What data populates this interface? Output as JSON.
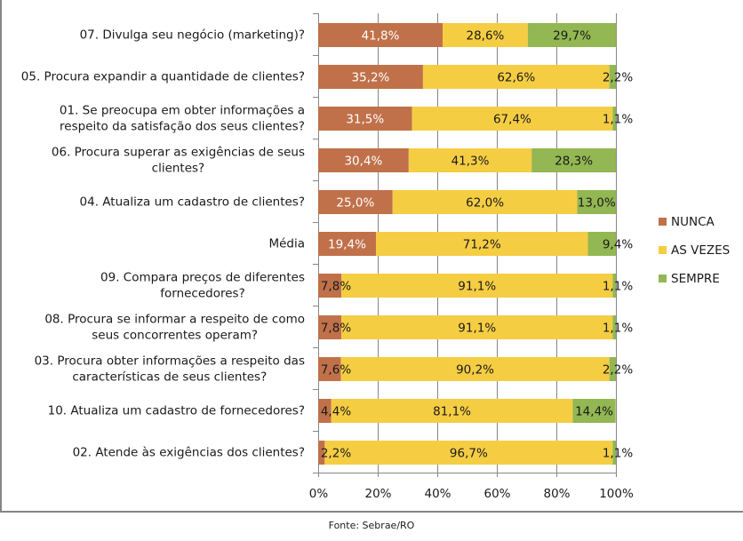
{
  "chart_data": {
    "type": "bar",
    "orientation": "horizontal",
    "stacked": "percent",
    "title": "",
    "xlabel": "",
    "ylabel": "",
    "xlim": [
      0,
      100
    ],
    "x_ticks": [
      "0%",
      "20%",
      "40%",
      "60%",
      "80%",
      "100%"
    ],
    "grid": "vertical",
    "legend_position": "right",
    "categories": [
      [
        "07. Divulga seu negócio (marketing)?"
      ],
      [
        "05. Procura expandir a quantidade de clientes?"
      ],
      [
        "01. Se preocupa em obter informações a",
        "respeito da satisfação dos seus clientes?"
      ],
      [
        "06. Procura superar as exigências de seus",
        "clientes?"
      ],
      [
        "04. Atualiza um cadastro de clientes?"
      ],
      [
        "Média"
      ],
      [
        "09. Compara preços de diferentes",
        "fornecedores?"
      ],
      [
        "08. Procura se informar a respeito de como",
        "seus concorrentes operam?"
      ],
      [
        "03. Procura obter informações a respeito das",
        "características de seus clientes?"
      ],
      [
        "10. Atualiza um cadastro de fornecedores?"
      ],
      [
        "02. Atende às exigências dos clientes?"
      ]
    ],
    "series": [
      {
        "name": "NUNCA",
        "color": "#C0714A",
        "label_color": "#ffffff",
        "values": [
          41.8,
          35.2,
          31.5,
          30.4,
          25.0,
          19.4,
          7.8,
          7.8,
          7.6,
          4.4,
          2.2
        ],
        "labels": [
          "41,8%",
          "35,2%",
          "31,5%",
          "30,4%",
          "25,0%",
          "19,4%",
          "7,8%",
          "7,8%",
          "7,6%",
          "4,4%",
          "2,2%"
        ]
      },
      {
        "name": "AS VEZES",
        "color": "#F5CD43",
        "label_color": "#1a1a1a",
        "values": [
          28.6,
          62.6,
          67.4,
          41.3,
          62.0,
          71.2,
          91.1,
          91.1,
          90.2,
          81.1,
          96.7
        ],
        "labels": [
          "28,6%",
          "62,6%",
          "67,4%",
          "41,3%",
          "62,0%",
          "71,2%",
          "91,1%",
          "91,1%",
          "90,2%",
          "81,1%",
          "96,7%"
        ]
      },
      {
        "name": "SEMPRE",
        "color": "#93B752",
        "label_color": "#1a1a1a",
        "values": [
          29.7,
          2.2,
          1.1,
          28.3,
          13.0,
          9.4,
          1.1,
          1.1,
          2.2,
          14.4,
          1.1
        ],
        "labels": [
          "29,7%",
          "2,2%",
          "1,1%",
          "28,3%",
          "13,0%",
          "9,4%",
          "1,1%",
          "1,1%",
          "2,2%",
          "14,4%",
          "1,1%"
        ]
      }
    ]
  },
  "source": "Fonte: Sebrae/RO"
}
